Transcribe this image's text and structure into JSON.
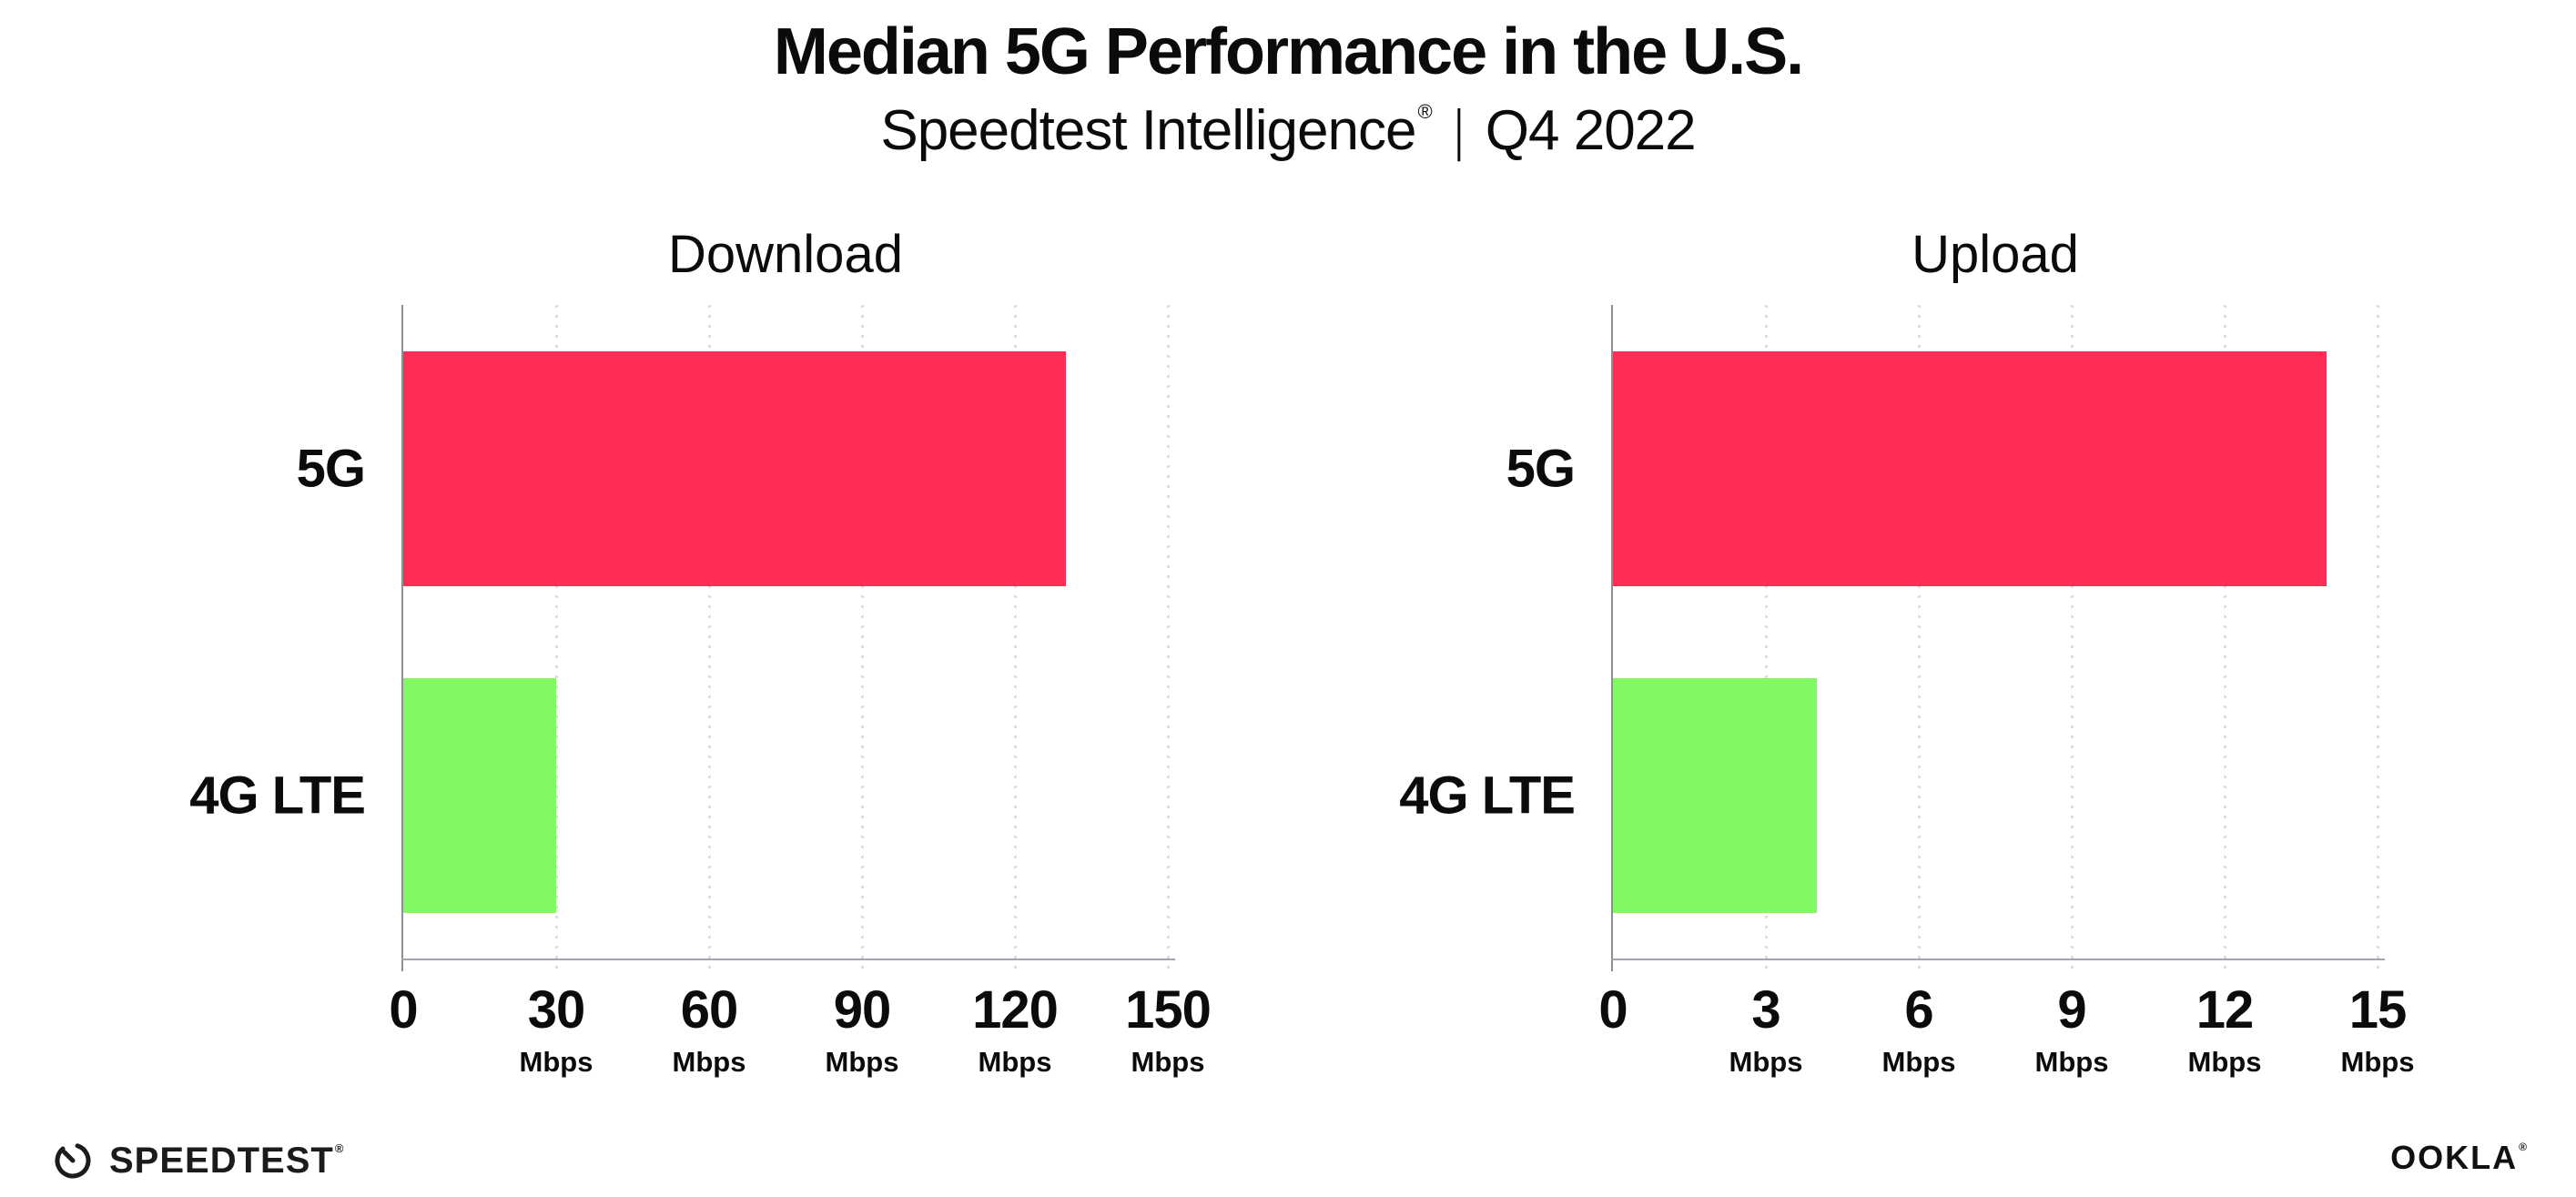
{
  "header": {
    "title": "Median 5G Performance in the U.S.",
    "brand": "Speedtest Intelligence",
    "registered": "®",
    "separator": "|",
    "quarter": "Q4 2022"
  },
  "chart_data": [
    {
      "type": "bar",
      "orientation": "horizontal",
      "title": "Download",
      "categories": [
        "5G",
        "4G LTE"
      ],
      "values": [
        130,
        30
      ],
      "unit": "Mbps",
      "xlim": [
        0,
        150
      ],
      "xticks": [
        0,
        30,
        60,
        90,
        120,
        150
      ],
      "tick_unit": "Mbps",
      "bar_colors": [
        "#fd2d55",
        "#82f963"
      ],
      "grid": "vertical-dotted",
      "value_labels_shown": false,
      "legend": "none"
    },
    {
      "type": "bar",
      "orientation": "horizontal",
      "title": "Upload",
      "categories": [
        "5G",
        "4G LTE"
      ],
      "values": [
        14,
        4
      ],
      "unit": "Mbps",
      "xlim": [
        0,
        15
      ],
      "xticks": [
        0,
        3,
        6,
        9,
        12,
        15
      ],
      "tick_unit": "Mbps",
      "bar_colors": [
        "#fd2d55",
        "#82f963"
      ],
      "grid": "vertical-dotted",
      "value_labels_shown": false,
      "legend": "none"
    }
  ],
  "footer": {
    "speedtest": "SPEEDTEST",
    "speedtest_mark": "®",
    "ookla": "OOKLA",
    "ookla_mark": "®"
  }
}
